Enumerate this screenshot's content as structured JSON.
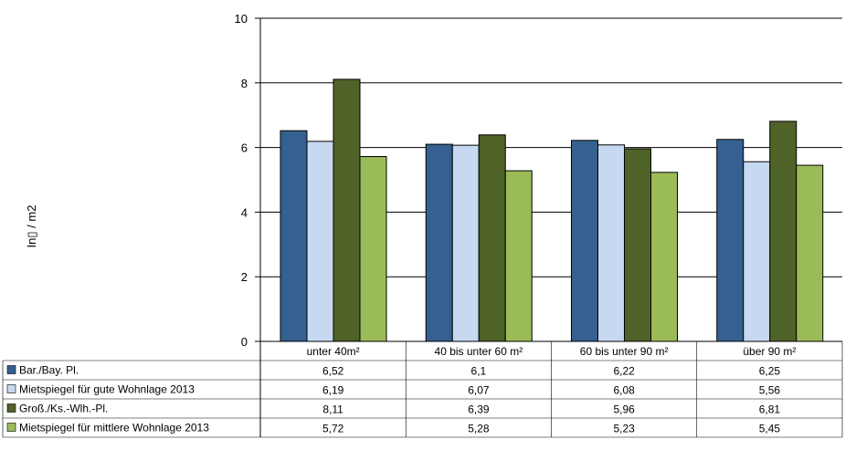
{
  "chart_data": {
    "type": "bar",
    "ylabel": "In▯ / m2",
    "ylim": [
      0,
      10
    ],
    "yticks": [
      0,
      2,
      4,
      6,
      8,
      10
    ],
    "grid": true,
    "legend": "table-below",
    "categories": [
      "unter 40m²",
      "40 bis unter 60 m²",
      "60 bis unter 90 m²",
      "über 90 m²"
    ],
    "series": [
      {
        "name": "Bar./Bay. Pl.",
        "color": "#35608f",
        "values": [
          6.52,
          6.1,
          6.22,
          6.25
        ],
        "labels": [
          "6,52",
          "6,1",
          "6,22",
          "6,25"
        ]
      },
      {
        "name": "Mietspiegel für gute Wohnlage  2013",
        "color": "#c6d9f0",
        "values": [
          6.19,
          6.07,
          6.08,
          5.56
        ],
        "labels": [
          "6,19",
          "6,07",
          "6,08",
          "5,56"
        ]
      },
      {
        "name": "Groß./Ks.-Wlh.-Pl.",
        "color": "#4f6228",
        "values": [
          8.11,
          6.39,
          5.96,
          6.81
        ],
        "labels": [
          "8,11",
          "6,39",
          "5,96",
          "6,81"
        ]
      },
      {
        "name": "Mietspiegel für mittlere Wohnlage 2013",
        "color": "#9bbb59",
        "values": [
          5.72,
          5.28,
          5.23,
          5.45
        ],
        "labels": [
          "5,72",
          "5,28",
          "5,23",
          "5,45"
        ]
      }
    ]
  }
}
